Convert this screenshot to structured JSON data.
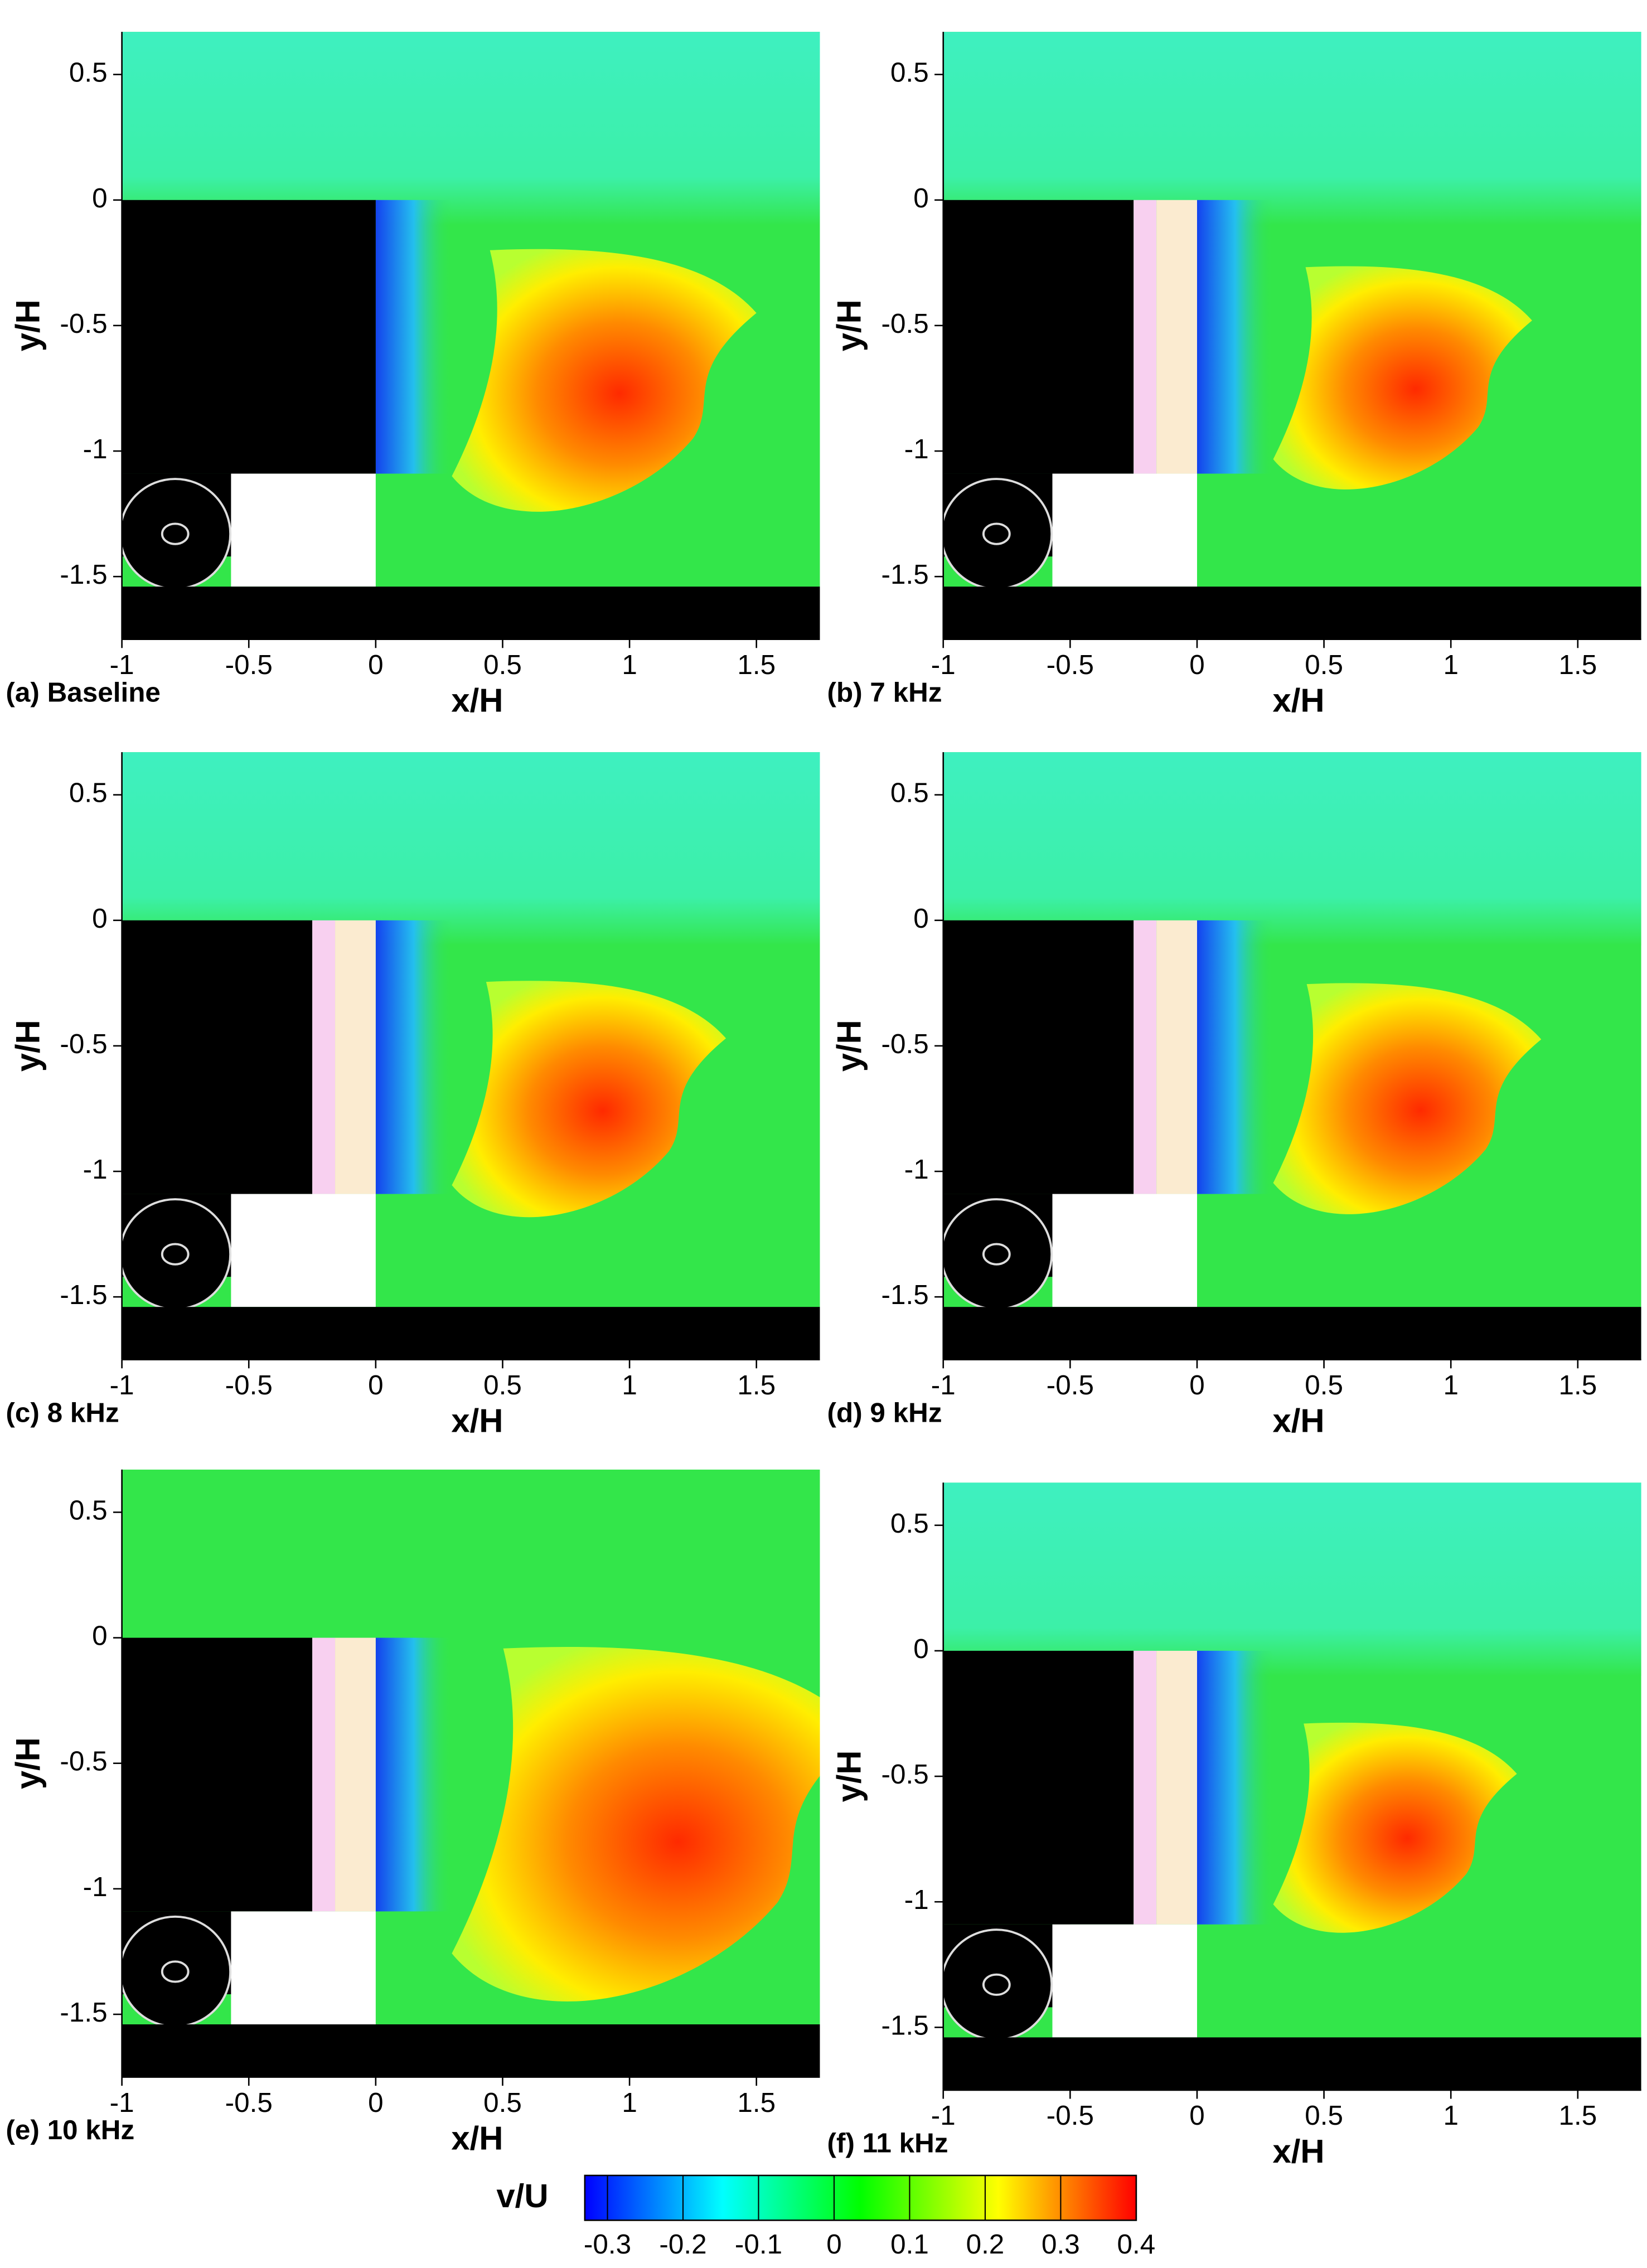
{
  "panels": [
    {
      "caption": "(a) Baseline",
      "xlabel": "x/H",
      "ylabel": "y/H",
      "actuator": false,
      "xlim": [
        -1,
        1.75
      ],
      "ylim": [
        -1.75,
        0.67
      ],
      "xticks": [
        -1,
        -0.5,
        0,
        0.5,
        1,
        1.5
      ],
      "yticks": [
        0.5,
        0,
        -0.5,
        -1,
        -1.5
      ]
    },
    {
      "caption": "(b) 7 kHz",
      "xlabel": "x/H",
      "ylabel": "y/H",
      "actuator": true,
      "xlim": [
        -1,
        1.75
      ],
      "ylim": [
        -1.75,
        0.67
      ],
      "xticks": [
        -1,
        -0.5,
        0,
        0.5,
        1,
        1.5
      ],
      "yticks": [
        0.5,
        0,
        -0.5,
        -1,
        -1.5
      ]
    },
    {
      "caption": "(c) 8 kHz",
      "xlabel": "x/H",
      "ylabel": "y/H",
      "actuator": true,
      "xlim": [
        -1,
        1.75
      ],
      "ylim": [
        -1.75,
        0.67
      ],
      "xticks": [
        -1,
        -0.5,
        0,
        0.5,
        1,
        1.5
      ],
      "yticks": [
        0.5,
        0,
        -0.5,
        -1,
        -1.5
      ]
    },
    {
      "caption": "(d) 9 kHz",
      "xlabel": "x/H",
      "ylabel": "y/H",
      "actuator": true,
      "xlim": [
        -1,
        1.75
      ],
      "ylim": [
        -1.75,
        0.67
      ],
      "xticks": [
        -1,
        -0.5,
        0,
        0.5,
        1,
        1.5
      ],
      "yticks": [
        0.5,
        0,
        -0.5,
        -1,
        -1.5
      ]
    },
    {
      "caption": "(e) 10 kHz",
      "xlabel": "x/H",
      "ylabel": "y/H",
      "actuator": true,
      "xlim": [
        -1,
        1.75
      ],
      "ylim": [
        -1.75,
        0.67
      ],
      "xticks": [
        -1,
        -0.5,
        0,
        0.5,
        1,
        1.5
      ],
      "yticks": [
        0.5,
        0,
        -0.5,
        -1,
        -1.5
      ]
    },
    {
      "caption": "(f) 11 kHz",
      "xlabel": "x/H",
      "ylabel": "y/H",
      "actuator": true,
      "xlim": [
        -1,
        1.75
      ],
      "ylim": [
        -1.75,
        0.67
      ],
      "xticks": [
        -1,
        -0.5,
        0,
        0.5,
        1,
        1.5
      ],
      "yticks": [
        0.5,
        0,
        -0.5,
        -1,
        -1.5
      ]
    }
  ],
  "colorbar": {
    "label": "v/U",
    "lim": [
      -0.33,
      0.4
    ],
    "ticks": [
      -0.3,
      -0.2,
      -0.1,
      0,
      0.1,
      0.2,
      0.3,
      0.4
    ],
    "colors": [
      "#0000ff",
      "#00ffff",
      "#00ff00",
      "#ffff00",
      "#ff0000"
    ]
  }
}
